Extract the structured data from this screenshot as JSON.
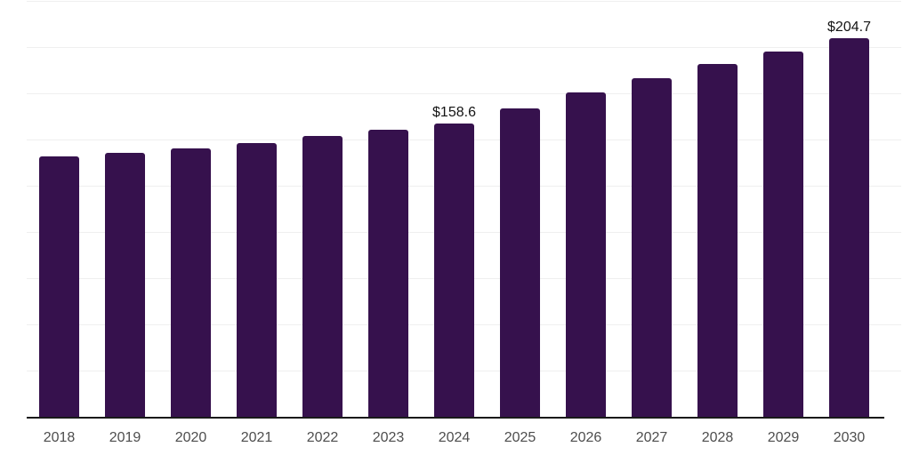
{
  "chart_data": {
    "type": "bar",
    "title": "",
    "xlabel": "",
    "ylabel": "",
    "categories": [
      "2018",
      "2019",
      "2020",
      "2021",
      "2022",
      "2023",
      "2024",
      "2025",
      "2026",
      "2027",
      "2028",
      "2029",
      "2030"
    ],
    "values": [
      140.8,
      142.7,
      145.1,
      148.0,
      151.9,
      155.2,
      158.6,
      166.8,
      175.4,
      183.1,
      190.8,
      197.5,
      204.7
    ],
    "data_labels": [
      {
        "category": "2024",
        "text": "$158.6"
      },
      {
        "category": "2030",
        "text": "$204.7"
      }
    ],
    "ylim": [
      0,
      225
    ],
    "grid_step": 25,
    "grid": "horizontal-only",
    "legend": "none",
    "colors": {
      "bar": "#36114d",
      "gridline": "#efefef",
      "axis_line": "#1a1a1a",
      "tick_label": "#4d4d4d",
      "data_label": "#141414",
      "background": "#ffffff"
    }
  }
}
